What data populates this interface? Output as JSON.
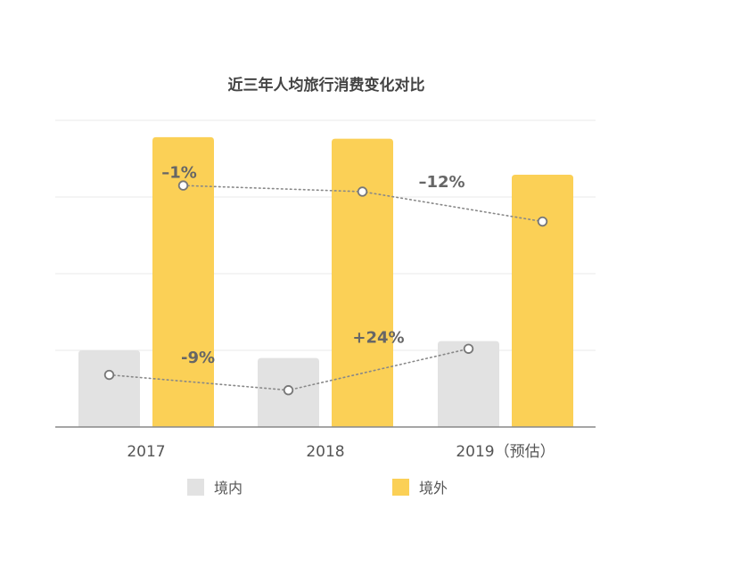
{
  "chart_data": {
    "type": "bar",
    "title": "近三年人均旅行消费变化对比",
    "categories": [
      "2017",
      "2018",
      "2019（预估）"
    ],
    "series": [
      {
        "name": "境内",
        "values": [
          100,
          90,
          112
        ],
        "color": "#e2e2e2"
      },
      {
        "name": "境外",
        "values": [
          378,
          376,
          329
        ],
        "color": "#fbd056"
      }
    ],
    "trend_lines": [
      {
        "series": "境内",
        "values": [
          68,
          48,
          102
        ],
        "changes": [
          "-9%",
          "+24%"
        ]
      },
      {
        "series": "境外",
        "values": [
          315,
          307,
          268
        ],
        "changes": [
          "–1%",
          "–12%"
        ]
      }
    ],
    "ylim": [
      0,
      400
    ],
    "grid": true,
    "legend_position": "bottom",
    "xlabel": "",
    "ylabel": ""
  },
  "colors": {
    "gridline": "#eeeeee",
    "axis": "#888888",
    "trend_line": "#888888",
    "trend_marker": "#777777"
  }
}
